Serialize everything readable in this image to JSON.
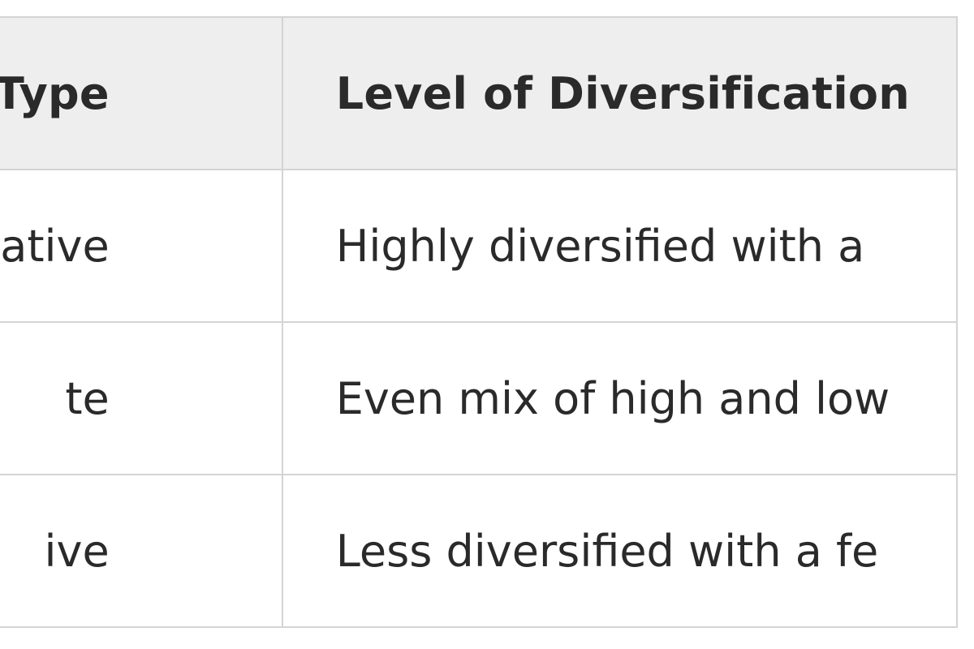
{
  "table": {
    "headers": [
      "Type",
      "Level of Diversification"
    ],
    "rows": [
      {
        "type": "ative",
        "level": "Highly diversified with a"
      },
      {
        "type": "te",
        "level": "Even mix of high and low"
      },
      {
        "type": "ive",
        "level": "Less diversified with a fe"
      }
    ]
  }
}
